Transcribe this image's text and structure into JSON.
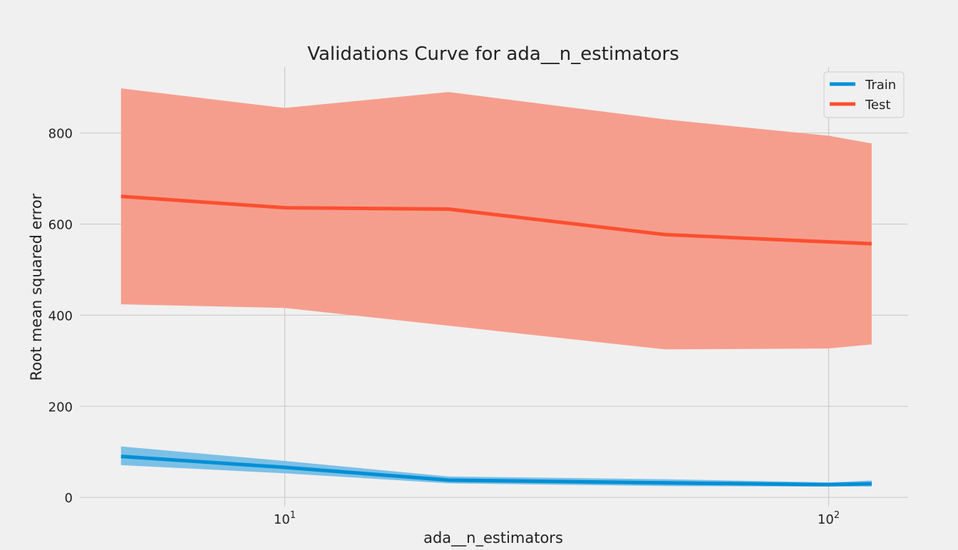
{
  "chart_data": {
    "type": "line",
    "title": "Validations Curve for ada__n_estimators",
    "xlabel": "ada__n_estimators",
    "ylabel": "Root mean squared error",
    "xscale": "log",
    "xlim": [
      4.2,
      140
    ],
    "ylim": [
      -20,
      945
    ],
    "x_ticks": [
      {
        "value": 10,
        "base": "10",
        "exp": "1"
      },
      {
        "value": 100,
        "base": "10",
        "exp": "2"
      }
    ],
    "y_ticks": [
      0,
      200,
      400,
      600,
      800
    ],
    "grid": true,
    "legend_position": "upper right",
    "x": [
      5,
      10,
      20,
      50,
      100,
      120
    ],
    "series": [
      {
        "name": "Train",
        "color": "#008fd5",
        "band_color": "#7cc0e6",
        "mean": [
          90,
          66,
          38,
          32,
          28,
          30
        ],
        "upper": [
          112,
          80,
          46,
          40,
          33,
          37
        ],
        "lower": [
          71,
          53,
          31,
          25,
          24,
          24
        ]
      },
      {
        "name": "Test",
        "color": "#fc4f30",
        "band_color": "#f69e8d",
        "mean": [
          661,
          636,
          633,
          577,
          561,
          557
        ],
        "upper": [
          898,
          855,
          890,
          830,
          794,
          777
        ],
        "lower": [
          424,
          416,
          377,
          325,
          327,
          336
        ]
      }
    ]
  }
}
